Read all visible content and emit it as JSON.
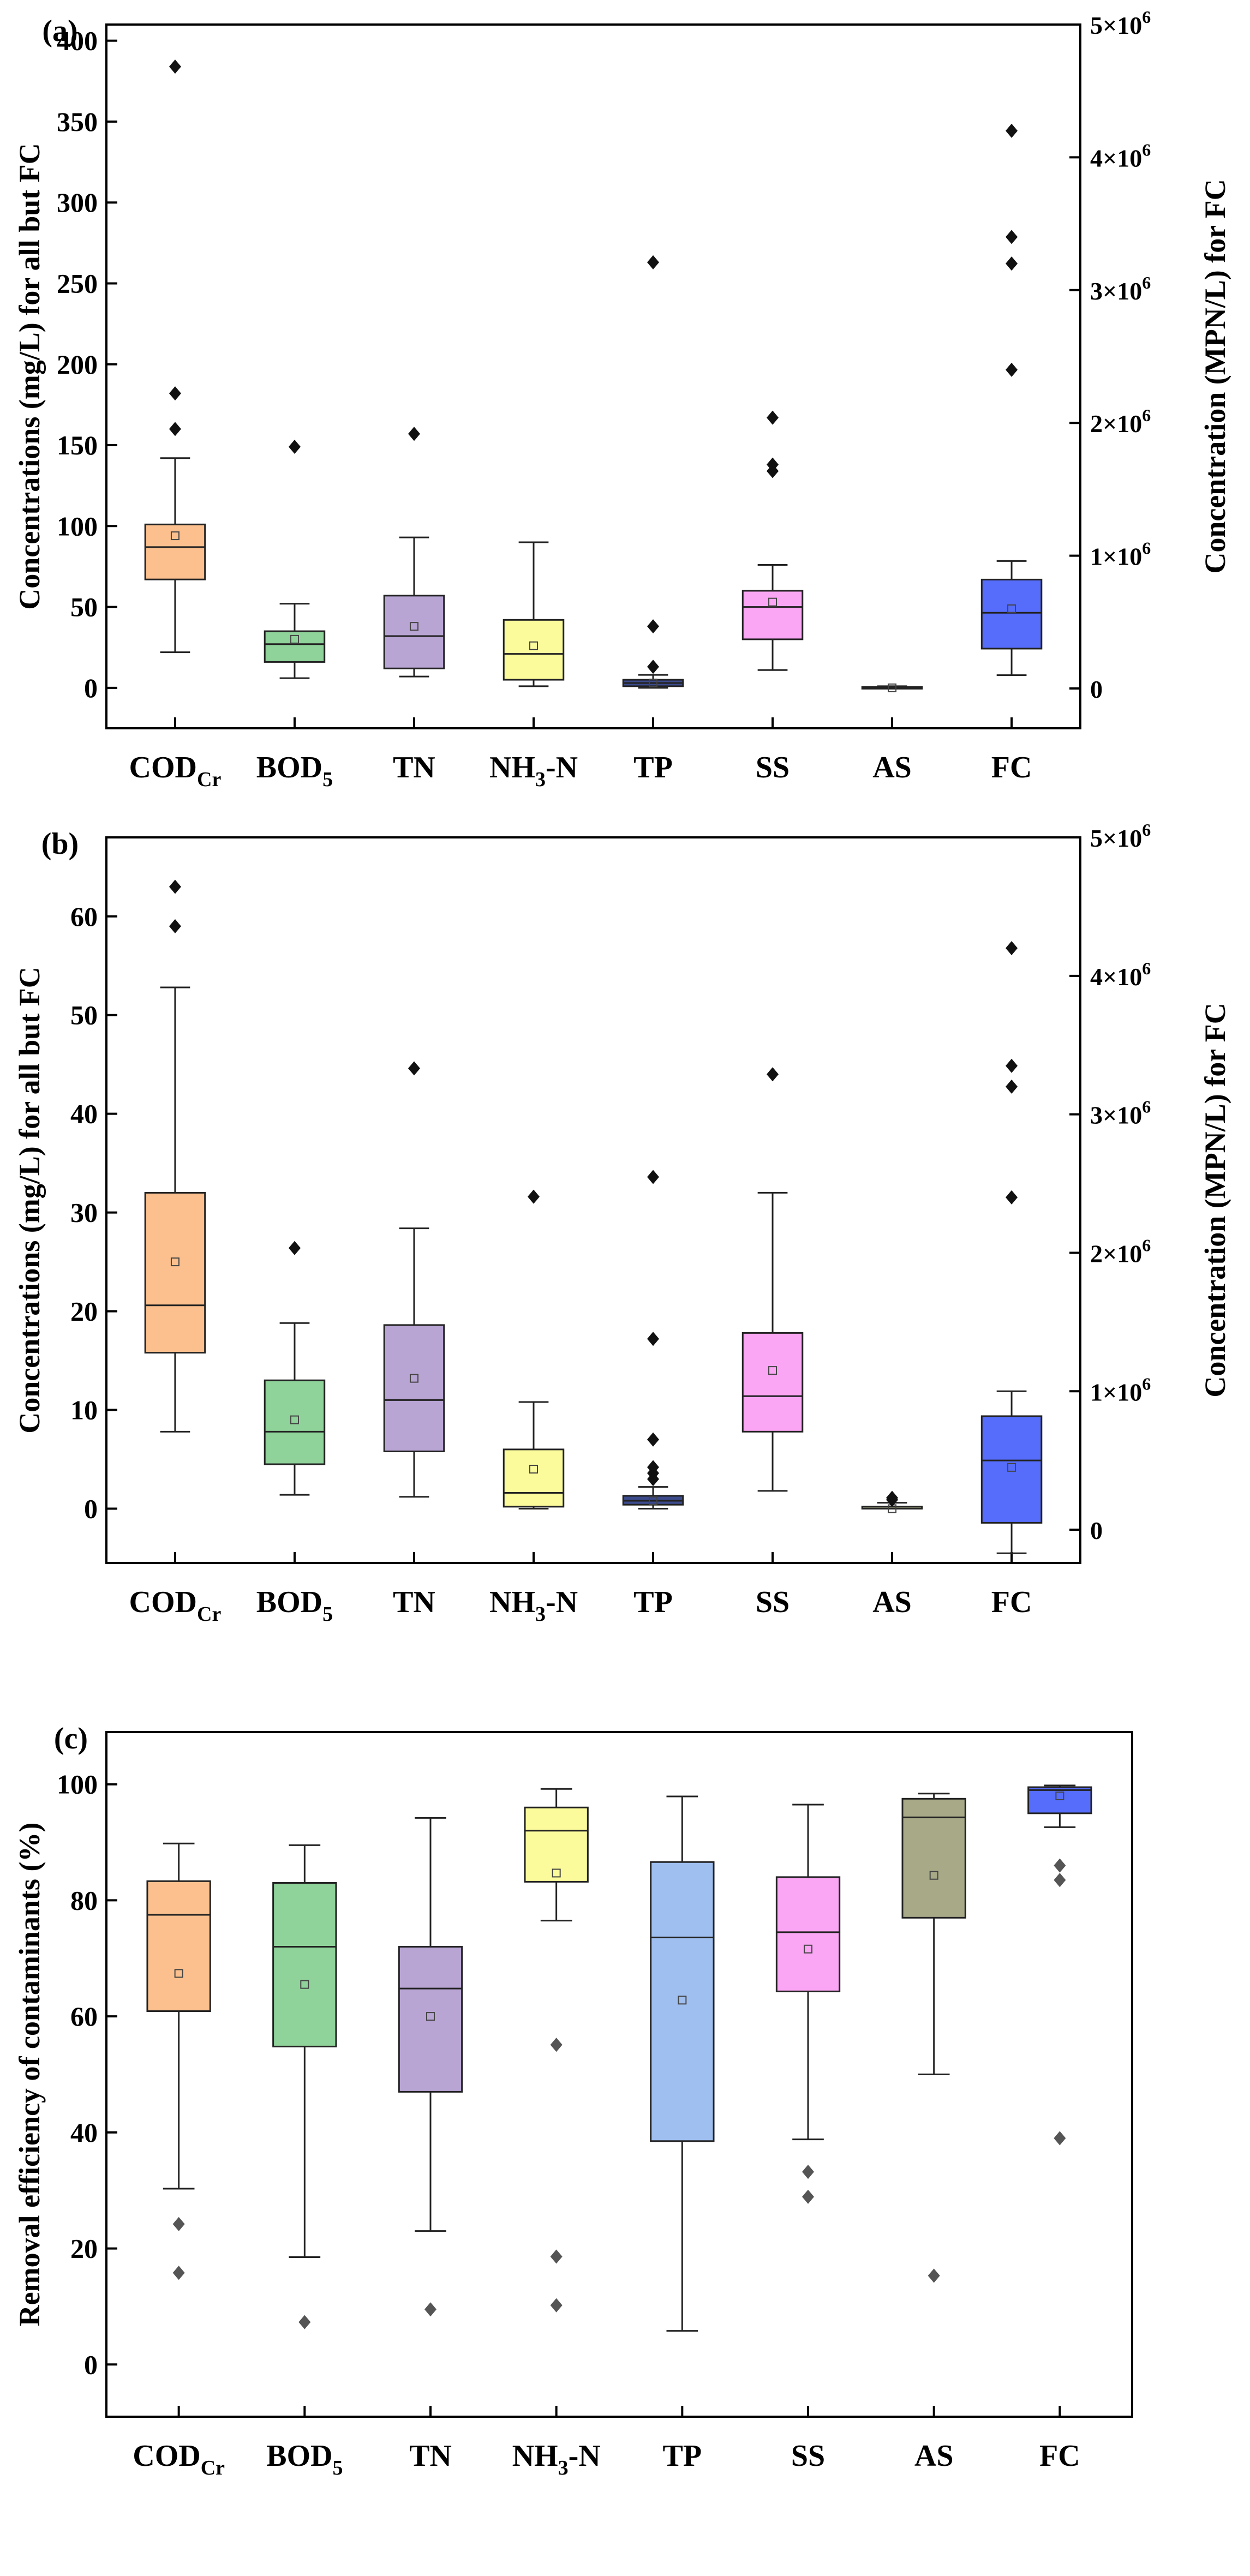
{
  "colors": {
    "CODCr": "#fbc08e",
    "BOD5": "#8fd29a",
    "TN": "#b8a5d4",
    "NH3N": "#fbfb9c",
    "TP_ab": "#3c4a8c",
    "TP_c": "#9fbff0",
    "SS": "#fba6f4",
    "AS": "#a7a987",
    "FC": "#566dfb"
  },
  "chart_data": [
    {
      "type": "box",
      "panel_label": "(a)",
      "ylabel": "Concentrations (mg/L) for all but FC",
      "y2label": "Concentration (MPN/L) for FC",
      "ylim": [
        -25,
        410
      ],
      "yticks": [
        "0",
        "50",
        "100",
        "150",
        "200",
        "250",
        "300",
        "350",
        "400"
      ],
      "y2lim": [
        -0.3,
        5.0
      ],
      "y2ticks": [
        {
          "v": 0,
          "b": "0"
        },
        {
          "v": 1,
          "b": "1×10",
          "e": "6"
        },
        {
          "v": 2,
          "b": "2×10",
          "e": "6"
        },
        {
          "v": 3,
          "b": "3×10",
          "e": "6"
        },
        {
          "v": 4,
          "b": "4×10",
          "e": "6"
        },
        {
          "v": 5,
          "b": "5×10",
          "e": "6"
        }
      ],
      "categories": [
        {
          "b": "COD",
          "s": "Cr"
        },
        {
          "b": "BOD",
          "s": "5"
        },
        {
          "b": "TN"
        },
        {
          "b": "NH",
          "s": "3",
          "t": "-N"
        },
        {
          "b": "TP"
        },
        {
          "b": "SS"
        },
        {
          "b": "AS"
        },
        {
          "b": "FC"
        }
      ],
      "boxes": [
        {
          "c": "CODCr",
          "axis": 1,
          "lo": 22,
          "q1": 67,
          "med": 87,
          "q3": 101,
          "hi": 142,
          "mean": 94,
          "out": [
            160,
            182,
            384
          ]
        },
        {
          "c": "BOD5",
          "axis": 1,
          "lo": 6,
          "q1": 16,
          "med": 27,
          "q3": 35,
          "hi": 52,
          "mean": 30,
          "out": [
            149
          ]
        },
        {
          "c": "TN",
          "axis": 1,
          "lo": 7,
          "q1": 12,
          "med": 32,
          "q3": 57,
          "hi": 93,
          "mean": 38,
          "out": [
            157
          ]
        },
        {
          "c": "NH3N",
          "axis": 1,
          "lo": 1,
          "q1": 5,
          "med": 21,
          "q3": 42,
          "hi": 90,
          "mean": 26,
          "out": []
        },
        {
          "c": "TP_ab",
          "axis": 1,
          "lo": 0,
          "q1": 1,
          "med": 3,
          "q3": 5,
          "hi": 8,
          "mean": 3,
          "out": [
            13,
            38,
            263
          ]
        },
        {
          "c": "SS",
          "axis": 1,
          "lo": 11,
          "q1": 30,
          "med": 50,
          "q3": 60,
          "hi": 76,
          "mean": 53,
          "out": [
            134,
            138,
            167
          ]
        },
        {
          "c": "AS",
          "axis": 1,
          "lo": 0,
          "q1": 0,
          "med": 0,
          "q3": 0.5,
          "hi": 1,
          "mean": 0,
          "out": []
        },
        {
          "c": "FC",
          "axis": 2,
          "lo": 0.1,
          "q1": 0.3,
          "med": 0.57,
          "q3": 0.82,
          "hi": 0.96,
          "mean": 0.6,
          "out": [
            2.4,
            3.2,
            3.4,
            4.2
          ]
        }
      ]
    },
    {
      "type": "box",
      "panel_label": "(b)",
      "ylabel": "Concentrations (mg/L) for all but FC",
      "y2label": "Concentration (MPN/L) for FC",
      "ylim": [
        -5.5,
        68
      ],
      "yticks": [
        "0",
        "10",
        "20",
        "30",
        "40",
        "50",
        "60"
      ],
      "y2lim": [
        -0.24,
        5.0
      ],
      "y2ticks": [
        {
          "v": 0,
          "b": "0"
        },
        {
          "v": 1,
          "b": "1×10",
          "e": "6"
        },
        {
          "v": 2,
          "b": "2×10",
          "e": "6"
        },
        {
          "v": 3,
          "b": "3×10",
          "e": "6"
        },
        {
          "v": 4,
          "b": "4×10",
          "e": "6"
        },
        {
          "v": 5,
          "b": "5×10",
          "e": "6"
        }
      ],
      "categories": [
        {
          "b": "COD",
          "s": "Cr"
        },
        {
          "b": "BOD",
          "s": "5"
        },
        {
          "b": "TN"
        },
        {
          "b": "NH",
          "s": "3",
          "t": "-N"
        },
        {
          "b": "TP"
        },
        {
          "b": "SS"
        },
        {
          "b": "AS"
        },
        {
          "b": "FC"
        }
      ],
      "boxes": [
        {
          "c": "CODCr",
          "axis": 1,
          "lo": 7.8,
          "q1": 15.8,
          "med": 20.6,
          "q3": 32.0,
          "hi": 52.8,
          "mean": 25.0,
          "out": [
            59.0,
            63.0
          ]
        },
        {
          "c": "BOD5",
          "axis": 1,
          "lo": 1.4,
          "q1": 4.5,
          "med": 7.8,
          "q3": 13.0,
          "hi": 18.8,
          "mean": 9.0,
          "out": [
            26.4
          ]
        },
        {
          "c": "TN",
          "axis": 1,
          "lo": 1.2,
          "q1": 5.8,
          "med": 11.0,
          "q3": 18.6,
          "hi": 28.4,
          "mean": 13.2,
          "out": [
            44.6
          ]
        },
        {
          "c": "NH3N",
          "axis": 1,
          "lo": 0,
          "q1": 0.2,
          "med": 1.6,
          "q3": 6.0,
          "hi": 10.8,
          "mean": 4.0,
          "out": [
            31.6
          ]
        },
        {
          "c": "TP_ab",
          "axis": 1,
          "lo": 0,
          "q1": 0.4,
          "med": 0.8,
          "q3": 1.3,
          "hi": 2.2,
          "mean": 0.8,
          "out": [
            3.0,
            3.6,
            4.2,
            7.0,
            17.2,
            33.6
          ]
        },
        {
          "c": "SS",
          "axis": 1,
          "lo": 1.8,
          "q1": 7.8,
          "med": 11.4,
          "q3": 17.8,
          "hi": 32.0,
          "mean": 14.0,
          "out": [
            44.0
          ]
        },
        {
          "c": "AS",
          "axis": 1,
          "lo": 0,
          "q1": 0,
          "med": 0,
          "q3": 0.2,
          "hi": 0.6,
          "mean": 0,
          "out": [
            0.9,
            1.1
          ]
        },
        {
          "c": "FC",
          "axis": 2,
          "lo": -0.17,
          "q1": 0.05,
          "med": 0.5,
          "q3": 0.82,
          "hi": 1.0,
          "mean": 0.45,
          "out": [
            2.4,
            3.2,
            3.35,
            4.2
          ]
        }
      ]
    },
    {
      "type": "box",
      "panel_label": "(c)",
      "ylabel": "Removal efficiency of contaminants (%)",
      "ylim": [
        -9,
        109
      ],
      "yticks": [
        "0",
        "20",
        "40",
        "60",
        "80",
        "100"
      ],
      "categories": [
        {
          "b": "COD",
          "s": "Cr"
        },
        {
          "b": "BOD",
          "s": "5"
        },
        {
          "b": "TN"
        },
        {
          "b": "NH",
          "s": "3",
          "t": "-N"
        },
        {
          "b": "TP"
        },
        {
          "b": "SS"
        },
        {
          "b": "AS"
        },
        {
          "b": "FC"
        }
      ],
      "boxes": [
        {
          "c": "CODCr",
          "axis": 1,
          "lo": 30.3,
          "q1": 60.9,
          "med": 77.5,
          "q3": 83.3,
          "hi": 89.8,
          "mean": 67.4,
          "out": [
            24.2,
            15.8
          ]
        },
        {
          "c": "BOD5",
          "axis": 1,
          "lo": 18.5,
          "q1": 54.8,
          "med": 72.0,
          "q3": 83.0,
          "hi": 89.5,
          "mean": 65.5,
          "out": [
            7.3
          ]
        },
        {
          "c": "TN",
          "axis": 1,
          "lo": 23.0,
          "q1": 47.0,
          "med": 64.8,
          "q3": 72.0,
          "hi": 94.2,
          "mean": 60.0,
          "out": [
            9.5
          ]
        },
        {
          "c": "NH3N",
          "axis": 1,
          "lo": 76.5,
          "q1": 83.2,
          "med": 92.0,
          "q3": 96.0,
          "hi": 99.2,
          "mean": 84.7,
          "out": [
            55.1,
            18.6,
            10.2
          ]
        },
        {
          "c": "TP_c",
          "axis": 1,
          "lo": 5.8,
          "q1": 38.5,
          "med": 73.6,
          "q3": 86.6,
          "hi": 97.9,
          "mean": 62.8,
          "out": []
        },
        {
          "c": "SS",
          "axis": 1,
          "lo": 38.8,
          "q1": 64.3,
          "med": 74.5,
          "q3": 84.0,
          "hi": 96.5,
          "mean": 71.6,
          "out": [
            33.2,
            28.9
          ]
        },
        {
          "c": "AS",
          "axis": 1,
          "lo": 50.0,
          "q1": 77.0,
          "med": 94.3,
          "q3": 97.5,
          "hi": 98.4,
          "mean": 84.3,
          "out": [
            15.3
          ]
        },
        {
          "c": "FC",
          "axis": 1,
          "lo": 92.6,
          "q1": 95.0,
          "med": 99.0,
          "q3": 99.5,
          "hi": 99.8,
          "mean": 98.0,
          "out": [
            86.0,
            83.5,
            39.0
          ]
        }
      ]
    }
  ]
}
